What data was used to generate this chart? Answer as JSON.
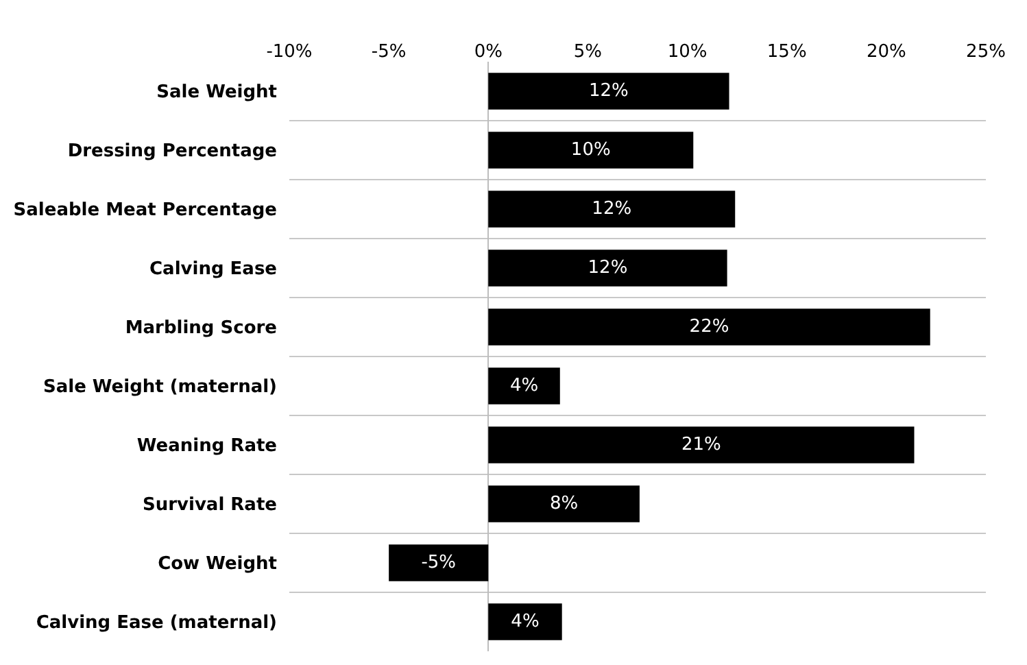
{
  "chart_data": {
    "type": "bar",
    "orientation": "horizontal",
    "categories": [
      "Sale Weight",
      "Dressing Percentage",
      "Saleable Meat Percentage",
      "Calving Ease",
      "Marbling Score",
      "Sale Weight (maternal)",
      "Weaning Rate",
      "Survival Rate",
      "Cow Weight",
      "Calving Ease (maternal)"
    ],
    "values": [
      12.1,
      10.3,
      12.4,
      12.0,
      22.2,
      3.6,
      21.4,
      7.6,
      -5.0,
      3.7
    ],
    "value_labels": [
      "12%",
      "10%",
      "12%",
      "12%",
      "22%",
      "4%",
      "21%",
      "8%",
      "-5%",
      "4%"
    ],
    "color": "#000000",
    "xlim": [
      -10,
      25
    ],
    "xticks": [
      {
        "value": -10,
        "label": "-10%"
      },
      {
        "value": -5,
        "label": "-5%"
      },
      {
        "value": 0,
        "label": "0%"
      },
      {
        "value": 5,
        "label": "5%"
      },
      {
        "value": 10,
        "label": "10%"
      },
      {
        "value": 15,
        "label": "15%"
      },
      {
        "value": 20,
        "label": "20%"
      },
      {
        "value": 25,
        "label": "25%"
      }
    ],
    "grid": "y",
    "legend": false
  }
}
